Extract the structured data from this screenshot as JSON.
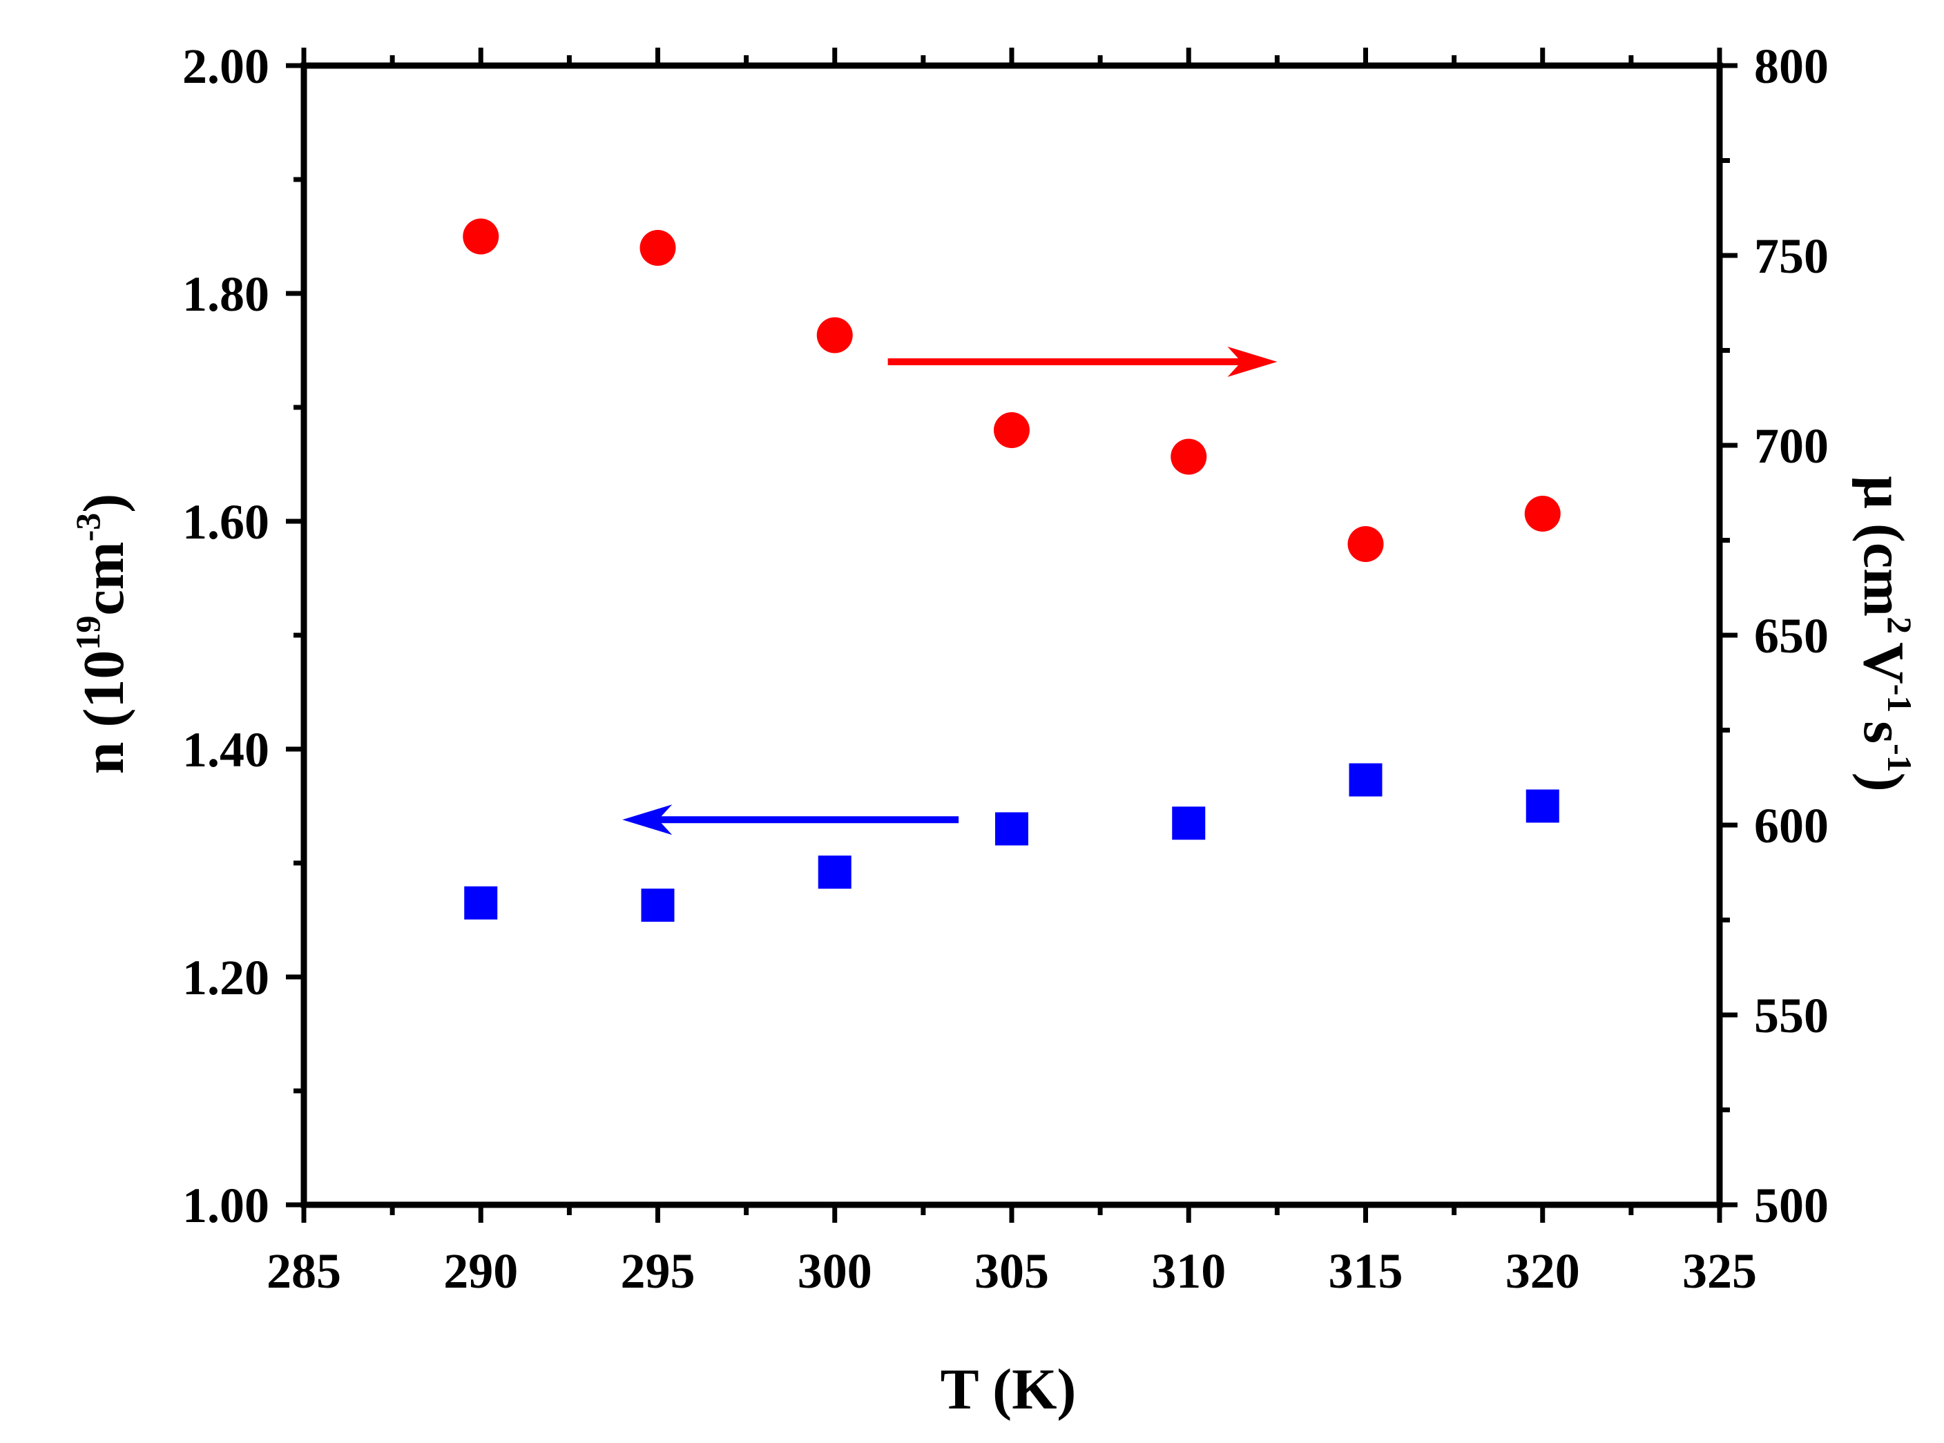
{
  "chart_data": {
    "type": "scatter",
    "xlabel": "T (K)",
    "ylabel_left": {
      "base": "n (10",
      "sup1": "19",
      "mid": "cm",
      "sup2": "-3",
      "end": ")"
    },
    "ylabel_right": {
      "base": "μ (cm",
      "sup1": "2",
      "mid": "V",
      "sup2": "-1",
      "mid2": "s",
      "sup3": "-1",
      "end": ")"
    },
    "xlim": [
      285,
      325
    ],
    "ylim_left": [
      1.0,
      2.0
    ],
    "ylim_right": [
      500,
      800
    ],
    "x_ticks": [
      "285",
      "290",
      "295",
      "300",
      "305",
      "310",
      "315",
      "320",
      "325"
    ],
    "y_left_ticks": [
      "1.00",
      "1.20",
      "1.40",
      "1.60",
      "1.80",
      "2.00"
    ],
    "y_right_ticks": [
      "500",
      "550",
      "600",
      "650",
      "700",
      "750",
      "800"
    ],
    "series": [
      {
        "axis": "left",
        "marker": "square",
        "color": "#0000FF",
        "x": [
          290,
          295,
          300,
          305,
          310,
          315,
          320
        ],
        "y": [
          1.265,
          1.263,
          1.292,
          1.33,
          1.335,
          1.373,
          1.35
        ]
      },
      {
        "axis": "right",
        "marker": "circle",
        "color": "#FF0000",
        "x": [
          290,
          295,
          300,
          305,
          310,
          315,
          320
        ],
        "y": [
          755,
          752,
          729,
          704,
          697,
          674,
          682
        ]
      }
    ],
    "annotations": [
      {
        "type": "arrow",
        "direction": "right",
        "color": "#FF0000",
        "x_from": 301.5,
        "x_to": 312.5,
        "y_left": 1.74
      },
      {
        "type": "arrow",
        "direction": "left",
        "color": "#0000FF",
        "x_from": 303.5,
        "x_to": 294.0,
        "y_left": 1.338
      }
    ]
  }
}
